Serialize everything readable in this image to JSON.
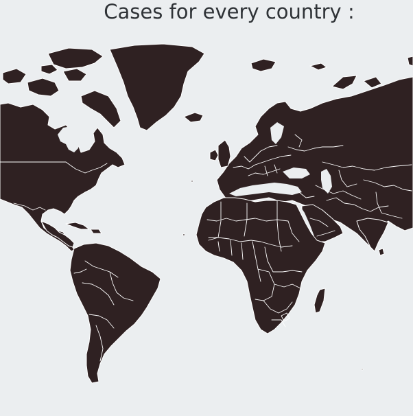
{
  "page": {
    "title": "Cases for every country :"
  },
  "map": {
    "land_color": "#2f2122",
    "border_color": "#ffffff",
    "ocean_color": "#ebeef0"
  }
}
